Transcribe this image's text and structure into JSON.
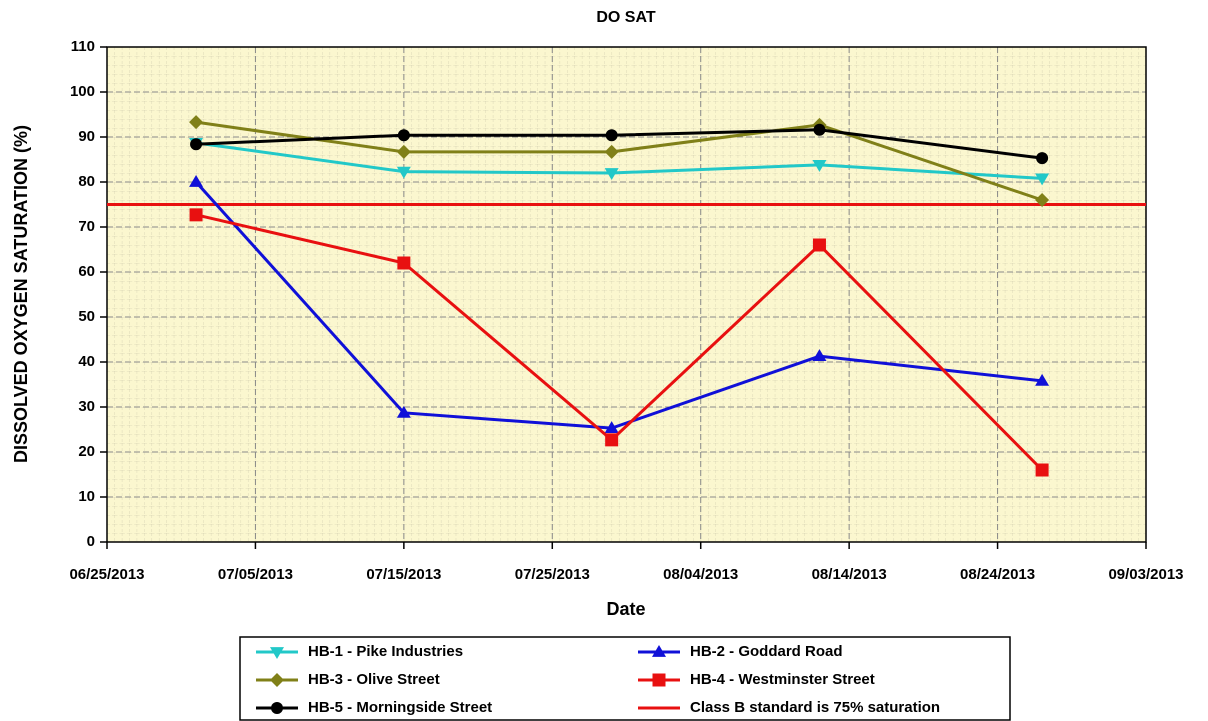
{
  "chart_data": {
    "type": "line",
    "title": "DO SAT",
    "x_label": "Date",
    "y_label": "DISSOLVED OXYGEN SATURATION (%)",
    "x": [
      "07/01/2013",
      "07/15/2013",
      "07/29/2013",
      "08/12/2013",
      "08/27/2013"
    ],
    "series": [
      {
        "name": "HB-1 - Pike Industries",
        "color": "#22c8c8",
        "marker": "triangle-down",
        "values": [
          88.7,
          82.3,
          82,
          83.8,
          80.8
        ]
      },
      {
        "name": "HB-2 - Goddard Road",
        "color": "#1010d8",
        "marker": "triangle-up",
        "values": [
          80,
          28.7,
          25.3,
          41.3,
          35.8
        ]
      },
      {
        "name": "HB-3 - Olive Street",
        "color": "#808018",
        "marker": "diamond",
        "values": [
          93.3,
          86.7,
          86.7,
          92.7,
          76
        ]
      },
      {
        "name": "HB-4 - Westminster Street",
        "color": "#e81010",
        "marker": "square",
        "values": [
          72.7,
          62,
          22.7,
          66,
          16
        ]
      },
      {
        "name": "HB-5 - Morningside Street",
        "color": "#000000",
        "marker": "circle",
        "values": [
          88.4,
          90.4,
          90.4,
          91.6,
          85.3
        ]
      }
    ],
    "reference_line": {
      "name": "Class B standard is 75% saturation",
      "value": 75,
      "color": "#e81010"
    },
    "xlim": [
      "06/25/2013",
      "09/03/2013"
    ],
    "xticks": [
      "06/25/2013",
      "07/05/2013",
      "07/15/2013",
      "07/25/2013",
      "08/04/2013",
      "08/14/2013",
      "08/24/2013",
      "09/03/2013"
    ],
    "ylim": [
      0,
      110
    ],
    "yticks": [
      0,
      10,
      20,
      30,
      40,
      50,
      60,
      70,
      80,
      90,
      100,
      110
    ],
    "grid": true,
    "legend": "bottom"
  }
}
